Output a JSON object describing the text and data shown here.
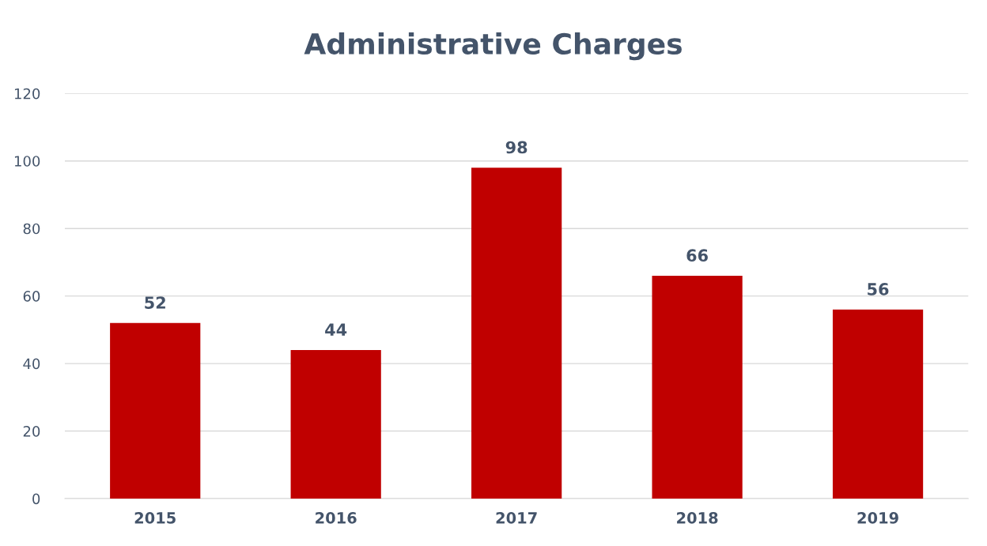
{
  "chart_data": {
    "type": "bar",
    "title": "Administrative Charges",
    "categories": [
      "2015",
      "2016",
      "2017",
      "2018",
      "2019"
    ],
    "values": [
      52,
      44,
      98,
      66,
      56
    ],
    "color": "#c00000",
    "ylim": [
      0,
      120
    ],
    "yticks": [
      0,
      20,
      40,
      60,
      80,
      100,
      120
    ],
    "grid": "y",
    "data_labels": true
  }
}
